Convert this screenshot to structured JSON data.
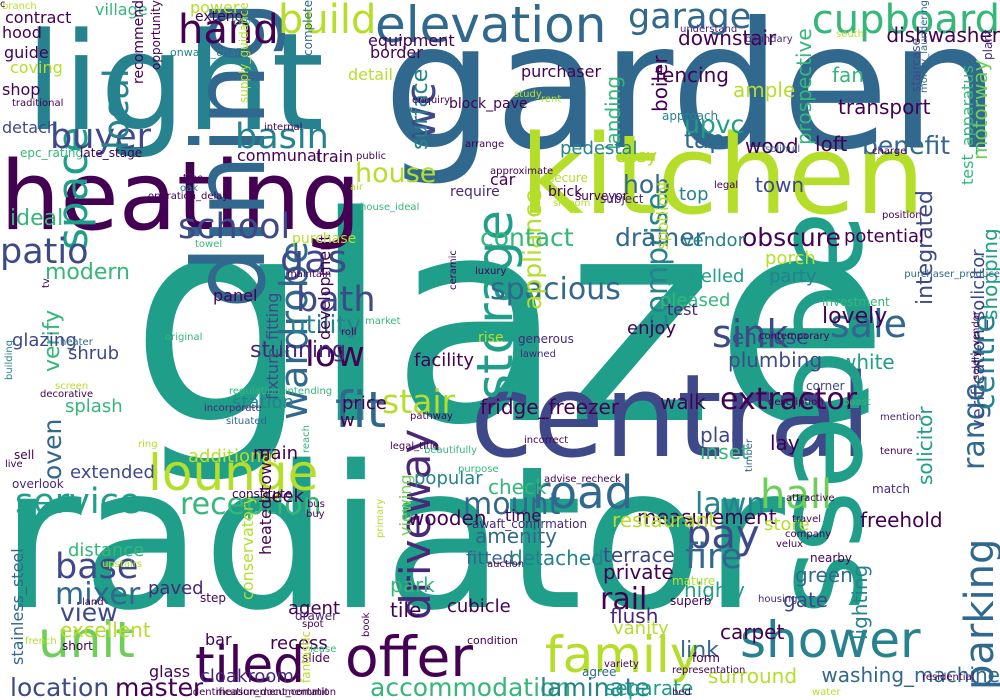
{
  "palette": [
    "#440154",
    "#482878",
    "#3e4989",
    "#31688e",
    "#26828e",
    "#1f9e89",
    "#35b779",
    "#6ece58",
    "#b5de2b",
    "#fde725"
  ],
  "words": [
    {
      "text": "glaze",
      "color": "#1f9e89"
    },
    {
      "text": "radiator",
      "color": "#1f9e89"
    },
    {
      "text": "garden",
      "color": "#31688e"
    },
    {
      "text": "light",
      "color": "#26828e"
    },
    {
      "text": "kitchen",
      "color": "#b5de2b"
    },
    {
      "text": "central",
      "color": "#3e4989"
    },
    {
      "text": "heating",
      "color": "#440154"
    },
    {
      "text": "access",
      "color": "#1f9e89"
    },
    {
      "text": "dining",
      "color": "#31688e"
    },
    {
      "text": "elevation",
      "color": "#31688e"
    },
    {
      "text": "offer",
      "color": "#440154"
    },
    {
      "text": "lounge",
      "color": "#b5de2b"
    },
    {
      "text": "family",
      "color": "#b5de2b"
    },
    {
      "text": "shower",
      "color": "#26828e"
    },
    {
      "text": "unit",
      "color": "#6ece58"
    },
    {
      "text": "tiled",
      "color": "#440154"
    },
    {
      "text": "road",
      "color": "#31688e"
    },
    {
      "text": "hall",
      "color": "#6ece58"
    },
    {
      "text": "space",
      "color": "#1f9e89"
    },
    {
      "text": "fit",
      "color": "#31688e"
    },
    {
      "text": "cupboard",
      "color": "#35b779"
    },
    {
      "text": "garage",
      "color": "#31688e"
    },
    {
      "text": "build",
      "color": "#b5de2b"
    },
    {
      "text": "storage",
      "color": "#1f9e89"
    },
    {
      "text": "driveway",
      "color": "#482878"
    },
    {
      "text": "service",
      "color": "#1f9e89"
    },
    {
      "text": "hand",
      "color": "#440154"
    },
    {
      "text": "wardrobe",
      "color": "#31688e"
    },
    {
      "text": "school",
      "color": "#3e4989"
    },
    {
      "text": "basin",
      "color": "#26828e"
    },
    {
      "text": "patio",
      "color": "#3e4989"
    },
    {
      "text": "buyer",
      "color": "#3e4989"
    },
    {
      "text": "local",
      "color": "#26828e"
    },
    {
      "text": "wc",
      "color": "#3e4989"
    },
    {
      "text": "parking",
      "color": "#31688e"
    },
    {
      "text": "range",
      "color": "#31688e"
    },
    {
      "text": "centre",
      "color": "#26828e"
    },
    {
      "text": "gas",
      "color": "#3e4989"
    },
    {
      "text": "bath",
      "color": "#3e4989"
    },
    {
      "text": "sink",
      "color": "#3e4989"
    },
    {
      "text": "sale",
      "color": "#31688e"
    },
    {
      "text": "stair",
      "color": "#b5de2b"
    },
    {
      "text": "bay",
      "color": "#3e4989"
    },
    {
      "text": "base",
      "color": "#3e4989"
    },
    {
      "text": "mixer",
      "color": "#31688e"
    },
    {
      "text": "fire",
      "color": "#31688e"
    },
    {
      "text": "rail",
      "color": "#440154"
    },
    {
      "text": "lawn",
      "color": "#26828e"
    },
    {
      "text": "low",
      "color": "#440154"
    },
    {
      "text": "house",
      "color": "#b5de2b"
    },
    {
      "text": "comprise",
      "color": "#26828e"
    },
    {
      "text": "spacious",
      "color": "#31688e"
    },
    {
      "text": "utility",
      "color": "#26828e"
    },
    {
      "text": "appliance",
      "color": "#b5de2b"
    },
    {
      "text": "extractor",
      "color": "#440154"
    },
    {
      "text": "reception",
      "color": "#35b779"
    },
    {
      "text": "mount",
      "color": "#31688e"
    },
    {
      "text": "view",
      "color": "#3e4989"
    },
    {
      "text": "location",
      "color": "#3e4989"
    },
    {
      "text": "accommodation",
      "color": "#35b779"
    },
    {
      "text": "laminate",
      "color": "#26828e"
    },
    {
      "text": "master",
      "color": "#440154"
    },
    {
      "text": "integrated",
      "color": "#3e4989"
    },
    {
      "text": "obscure",
      "color": "#440154"
    },
    {
      "text": "drainer",
      "color": "#31688e"
    },
    {
      "text": "contact",
      "color": "#35b779"
    },
    {
      "text": "hob",
      "color": "#31688e"
    },
    {
      "text": "tap",
      "color": "#31688e"
    },
    {
      "text": "upvc",
      "color": "#1f9e89"
    },
    {
      "text": "benefit",
      "color": "#31688e"
    },
    {
      "text": "landing",
      "color": "#35b779"
    },
    {
      "text": "surface",
      "color": "#26828e"
    },
    {
      "text": "oven",
      "color": "#31688e"
    },
    {
      "text": "modern",
      "color": "#35b779"
    },
    {
      "text": "ideal",
      "color": "#35b779"
    },
    {
      "text": "verify",
      "color": "#35b779"
    },
    {
      "text": "stunning",
      "color": "#482878"
    },
    {
      "text": "plumbing",
      "color": "#3e4989"
    },
    {
      "text": "lovely",
      "color": "#440154"
    },
    {
      "text": "enclose",
      "color": "#3e4989"
    },
    {
      "text": "highly",
      "color": "#1f9e89"
    },
    {
      "text": "link",
      "color": "#31688e"
    },
    {
      "text": "surround",
      "color": "#b5de2b"
    },
    {
      "text": "gate",
      "color": "#3e4989"
    },
    {
      "text": "carpet",
      "color": "#440154"
    },
    {
      "text": "green",
      "color": "#31688e"
    },
    {
      "text": "freehold",
      "color": "#440154"
    },
    {
      "text": "lighting",
      "color": "#26828e"
    },
    {
      "text": "solicitor",
      "color": "#1f9e89"
    },
    {
      "text": "washing_machine",
      "color": "#31688e"
    },
    {
      "text": "white",
      "color": "#1f9e89"
    },
    {
      "text": "shopping",
      "color": "#1f9e89"
    },
    {
      "text": "motorway",
      "color": "#6ece58"
    },
    {
      "text": "transport",
      "color": "#440154"
    },
    {
      "text": "loft",
      "color": "#440154"
    },
    {
      "text": "wood",
      "color": "#440154"
    },
    {
      "text": "town",
      "color": "#3e4989"
    },
    {
      "text": "fan",
      "color": "#35b779"
    },
    {
      "text": "ample",
      "color": "#b5de2b"
    },
    {
      "text": "boiler",
      "color": "#440154"
    },
    {
      "text": "fencing",
      "color": "#440154"
    },
    {
      "text": "downstair",
      "color": "#440154"
    },
    {
      "text": "dishwasher",
      "color": "#440154"
    },
    {
      "text": "staircase",
      "color": "#3e4989"
    },
    {
      "text": "prospective",
      "color": "#35b779"
    },
    {
      "text": "verification_solicitor",
      "color": "#3e4989"
    },
    {
      "text": "test_apparatus",
      "color": "#35b779"
    },
    {
      "text": "fixture_fitting",
      "color": "#3e4989"
    },
    {
      "text": "heated_towel",
      "color": "#440154"
    },
    {
      "text": "conservatory",
      "color": "#b5de2b"
    },
    {
      "text": "stainless_steel",
      "color": "#31688e"
    },
    {
      "text": "cubicle",
      "color": "#440154"
    },
    {
      "text": "tile",
      "color": "#440154"
    },
    {
      "text": "park",
      "color": "#35b779"
    },
    {
      "text": "fitted",
      "color": "#31688e"
    },
    {
      "text": "detached",
      "color": "#26828e"
    },
    {
      "text": "terrace",
      "color": "#3e4989"
    },
    {
      "text": "private",
      "color": "#440154"
    },
    {
      "text": "amenity",
      "color": "#31688e"
    },
    {
      "text": "flush",
      "color": "#482878"
    },
    {
      "text": "vanity",
      "color": "#b5de2b"
    },
    {
      "text": "agent",
      "color": "#440154"
    },
    {
      "text": "distance",
      "color": "#35b779"
    },
    {
      "text": "paved",
      "color": "#482878"
    },
    {
      "text": "excellent",
      "color": "#b5de2b"
    },
    {
      "text": "recess",
      "color": "#440154"
    },
    {
      "text": "cloakroom",
      "color": "#482878"
    },
    {
      "text": "separate",
      "color": "#1f9e89"
    },
    {
      "text": "measurement",
      "color": "#440154"
    },
    {
      "text": "restaurant",
      "color": "#b5de2b"
    },
    {
      "text": "store",
      "color": "#b5de2b"
    },
    {
      "text": "plan",
      "color": "#3e4989"
    },
    {
      "text": "inset",
      "color": "#35b779"
    },
    {
      "text": "walk",
      "color": "#440154"
    },
    {
      "text": "lay",
      "color": "#440154"
    },
    {
      "text": "check",
      "color": "#35b779"
    },
    {
      "text": "popular",
      "color": "#26828e"
    },
    {
      "text": "wooden",
      "color": "#440154"
    },
    {
      "text": "fridge_freezer",
      "color": "#440154"
    },
    {
      "text": "price",
      "color": "#440154"
    },
    {
      "text": "facility",
      "color": "#440154"
    },
    {
      "text": "station",
      "color": "#26828e"
    },
    {
      "text": "panel",
      "color": "#440154"
    },
    {
      "text": "additional",
      "color": "#b5de2b"
    },
    {
      "text": "main",
      "color": "#440154"
    },
    {
      "text": "extended",
      "color": "#3e4989"
    },
    {
      "text": "splash",
      "color": "#35b779"
    },
    {
      "text": "shrub",
      "color": "#3e4989"
    },
    {
      "text": "glazing",
      "color": "#3e4989"
    },
    {
      "text": "development",
      "color": "#440154"
    },
    {
      "text": "viewing",
      "color": "#6ece58"
    },
    {
      "text": "seek",
      "color": "#440154"
    },
    {
      "text": "time",
      "color": "#440154"
    },
    {
      "text": "porch",
      "color": "#b5de2b"
    },
    {
      "text": "party",
      "color": "#26828e"
    },
    {
      "text": "potential",
      "color": "#440154"
    },
    {
      "text": "panelled",
      "color": "#1f9e89"
    },
    {
      "text": "pleased",
      "color": "#35b779"
    },
    {
      "text": "enjoy",
      "color": "#440154"
    },
    {
      "text": "test",
      "color": "#482878"
    },
    {
      "text": "vendor",
      "color": "#26828e"
    },
    {
      "text": "spotlight",
      "color": "#b5de2b"
    },
    {
      "text": "top",
      "color": "#26828e"
    },
    {
      "text": "easy",
      "color": "#b5de2b"
    },
    {
      "text": "pedestal",
      "color": "#26828e"
    },
    {
      "text": "car",
      "color": "#440154"
    },
    {
      "text": "purchaser",
      "color": "#440154"
    },
    {
      "text": "block_pave",
      "color": "#440154"
    },
    {
      "text": "communal",
      "color": "#440154"
    },
    {
      "text": "train",
      "color": "#440154"
    },
    {
      "text": "detach",
      "color": "#3e4989"
    },
    {
      "text": "shop",
      "color": "#440154"
    },
    {
      "text": "guide",
      "color": "#440154"
    },
    {
      "text": "coving",
      "color": "#b5de2b"
    },
    {
      "text": "hood",
      "color": "#440154"
    },
    {
      "text": "contract",
      "color": "#440154"
    },
    {
      "text": "village",
      "color": "#35b779"
    },
    {
      "text": "power",
      "color": "#b5de2b"
    },
    {
      "text": "extend",
      "color": "#440154"
    },
    {
      "text": "equipment",
      "color": "#440154"
    },
    {
      "text": "border",
      "color": "#440154"
    },
    {
      "text": "detail",
      "color": "#b5de2b"
    },
    {
      "text": "recommend",
      "color": "#440154"
    },
    {
      "text": "onward_chain",
      "color": "#26828e"
    },
    {
      "text": "supply_guidance",
      "color": "#b5de2b"
    },
    {
      "text": "epc_rating",
      "color": "#35b779"
    },
    {
      "text": "late_stage",
      "color": "#440154"
    },
    {
      "text": "purchase",
      "color": "#b5de2b"
    },
    {
      "text": "house_ideal",
      "color": "#35b779"
    },
    {
      "text": "approach",
      "color": "#26828e"
    },
    {
      "text": "brick",
      "color": "#440154"
    },
    {
      "text": "secure",
      "color": "#b5de2b"
    },
    {
      "text": "surveyor",
      "color": "#440154"
    },
    {
      "text": "subject",
      "color": "#482878"
    },
    {
      "text": "require",
      "color": "#482878"
    },
    {
      "text": "incorporate",
      "color": "#482878"
    },
    {
      "text": "situated",
      "color": "#31688e"
    },
    {
      "text": "lawned",
      "color": "#482878"
    },
    {
      "text": "generous",
      "color": "#482878"
    },
    {
      "text": "rise",
      "color": "#b5de2b"
    },
    {
      "text": "corner",
      "color": "#3e4989"
    },
    {
      "text": "investment",
      "color": "#35b779"
    },
    {
      "text": "mature",
      "color": "#b5de2b"
    },
    {
      "text": "nearby",
      "color": "#440154"
    },
    {
      "text": "superb",
      "color": "#440154"
    },
    {
      "text": "form",
      "color": "#440154"
    },
    {
      "text": "condition",
      "color": "#440154"
    },
    {
      "text": "slide",
      "color": "#440154"
    },
    {
      "text": "drawer",
      "color": "#482878"
    },
    {
      "text": "step",
      "color": "#440154"
    },
    {
      "text": "short",
      "color": "#440154"
    },
    {
      "text": "sell",
      "color": "#440154"
    },
    {
      "text": "overlook",
      "color": "#482878"
    },
    {
      "text": "constitute",
      "color": "#440154"
    },
    {
      "text": "agree",
      "color": "#31688e"
    },
    {
      "text": "match",
      "color": "#482878"
    },
    {
      "text": "awaft_confirmation",
      "color": "#482878"
    },
    {
      "text": "branch",
      "color": "#b5de2b"
    },
    {
      "text": "city",
      "color": "#35b779"
    },
    {
      "text": "complete",
      "color": "#31688e"
    },
    {
      "text": "south",
      "color": "#b5de2b"
    },
    {
      "text": "understand",
      "color": "#482878"
    },
    {
      "text": "boundary",
      "color": "#482878"
    },
    {
      "text": "money_laundering",
      "color": "#31688e"
    },
    {
      "text": "plant",
      "color": "#482878"
    },
    {
      "text": "solihull",
      "color": "#31688e"
    },
    {
      "text": "arrange",
      "color": "#440154"
    },
    {
      "text": "study",
      "color": "#b5de2b"
    },
    {
      "text": "rent",
      "color": "#b5de2b"
    },
    {
      "text": "enquiry",
      "color": "#440154"
    },
    {
      "text": "traditional",
      "color": "#440154"
    },
    {
      "text": "opportunity",
      "color": "#440154"
    },
    {
      "text": "internal",
      "color": "#440154"
    },
    {
      "text": "tree",
      "color": "#440154"
    },
    {
      "text": "public",
      "color": "#440154"
    },
    {
      "text": "air",
      "color": "#b5de2b"
    },
    {
      "text": "oak",
      "color": "#26828e"
    },
    {
      "text": "operation_delay",
      "color": "#440154"
    },
    {
      "text": "towel",
      "color": "#35b779"
    },
    {
      "text": "maintain",
      "color": "#440154"
    },
    {
      "text": "ceramic",
      "color": "#440154"
    },
    {
      "text": "luxury",
      "color": "#440154"
    },
    {
      "text": "heater",
      "color": "#31688e"
    },
    {
      "text": "screen",
      "color": "#b5de2b"
    },
    {
      "text": "decorative",
      "color": "#440154"
    },
    {
      "text": "regulation_intending",
      "color": "#35b779"
    },
    {
      "text": "building",
      "color": "#26828e"
    },
    {
      "text": "tv",
      "color": "#440154"
    },
    {
      "text": "original",
      "color": "#35b779"
    },
    {
      "text": "ring",
      "color": "#b5de2b"
    },
    {
      "text": "legal_title",
      "color": "#440154"
    },
    {
      "text": "roll",
      "color": "#440154"
    },
    {
      "text": "market",
      "color": "#35b779"
    },
    {
      "text": "reach",
      "color": "#35b779"
    },
    {
      "text": "pathway",
      "color": "#440154"
    },
    {
      "text": "beautifully",
      "color": "#35b779"
    },
    {
      "text": "purpose",
      "color": "#35b779"
    },
    {
      "text": "incorrect",
      "color": "#440154"
    },
    {
      "text": "advise_recheck",
      "color": "#440154"
    },
    {
      "text": "auction",
      "color": "#440154"
    },
    {
      "text": "primary",
      "color": "#b5de2b"
    },
    {
      "text": "upstairs",
      "color": "#b5de2b"
    },
    {
      "text": "land",
      "color": "#440154"
    },
    {
      "text": "bus",
      "color": "#440154"
    },
    {
      "text": "buy",
      "color": "#440154"
    },
    {
      "text": "spot",
      "color": "#440154"
    },
    {
      "text": "velux",
      "color": "#440154"
    },
    {
      "text": "company",
      "color": "#440154"
    },
    {
      "text": "travel",
      "color": "#440154"
    },
    {
      "text": "attractive",
      "color": "#440154"
    },
    {
      "text": "timber",
      "color": "#31688e"
    },
    {
      "text": "housing",
      "color": "#482878"
    },
    {
      "text": "variety",
      "color": "#440154"
    },
    {
      "text": "representation",
      "color": "#440154"
    },
    {
      "text": "residential",
      "color": "#440154"
    },
    {
      "text": "water",
      "color": "#b5de2b"
    },
    {
      "text": "bed",
      "color": "#440154"
    },
    {
      "text": "measurement_commit",
      "color": "#440154"
    },
    {
      "text": "identification_documentation",
      "color": "#440154"
    },
    {
      "text": "fantastic",
      "color": "#b5de2b"
    },
    {
      "text": "french",
      "color": "#b5de2b"
    },
    {
      "text": "lease",
      "color": "#35b779"
    },
    {
      "text": "book",
      "color": "#440154"
    },
    {
      "text": "live",
      "color": "#440154"
    },
    {
      "text": "tenure",
      "color": "#440154"
    },
    {
      "text": "mention",
      "color": "#482878"
    },
    {
      "text": "boast",
      "color": "#35b779"
    },
    {
      "text": "description",
      "color": "#440154"
    },
    {
      "text": "contemporary",
      "color": "#440154"
    },
    {
      "text": "solely_vendor",
      "color": "#440154"
    },
    {
      "text": "purchaser_produce",
      "color": "#31688e"
    },
    {
      "text": "position",
      "color": "#440154"
    },
    {
      "text": "charge",
      "color": "#440154"
    },
    {
      "text": "legal",
      "color": "#440154"
    },
    {
      "text": "shroom",
      "color": "#b5de2b"
    },
    {
      "text": "approximate",
      "color": "#440154"
    },
    {
      "text": "glass",
      "color": "#440154"
    },
    {
      "text": "bar",
      "color": "#440154"
    },
    {
      "text": "w",
      "color": "#440154"
    },
    {
      "text": "c",
      "color": "#440154"
    }
  ]
}
